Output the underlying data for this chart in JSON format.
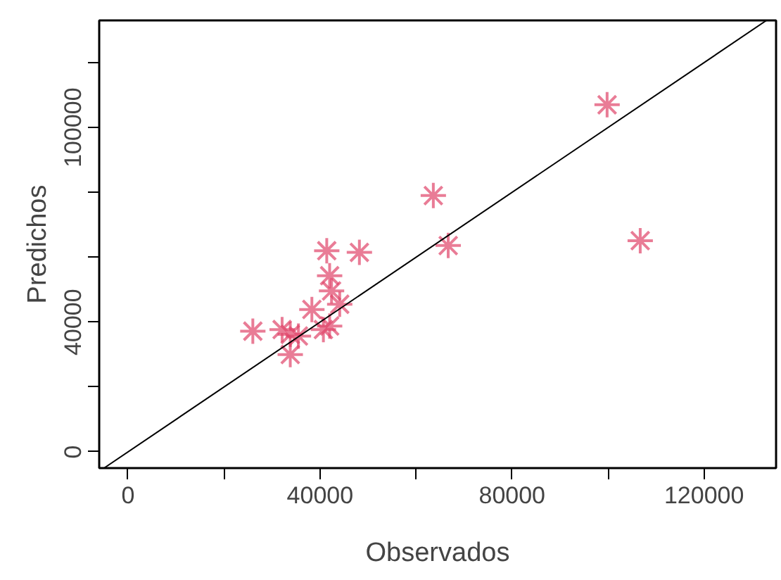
{
  "chart_data": {
    "type": "scatter",
    "xlabel": "Observados",
    "ylabel": "Predichos",
    "xlim": [
      -6000,
      135000
    ],
    "ylim": [
      -5000,
      133000
    ],
    "xticks": [
      0,
      {
        "value": 20000,
        "label": null
      },
      40000,
      {
        "value": 60000,
        "label": null
      },
      80000,
      {
        "value": 100000,
        "label": null
      },
      120000
    ],
    "yticks": [
      0,
      {
        "value": 20000,
        "label": null
      },
      40000,
      {
        "value": 60000,
        "label": null
      },
      {
        "value": 80000,
        "label": null
      },
      100000,
      {
        "value": 120000,
        "label": null
      }
    ],
    "grid": false,
    "series": [
      {
        "marker": "cross",
        "color": "#e0456a",
        "x": [
          99800,
          106700,
          63600,
          66700,
          48200,
          41400,
          42000,
          42400,
          44100,
          38300,
          42000,
          40700,
          26000,
          32100,
          33800,
          33800,
          35500
        ],
        "values": [
          107000,
          65100,
          79000,
          63600,
          61500,
          62000,
          54300,
          49600,
          45500,
          43900,
          38800,
          37700,
          37200,
          37700,
          36200,
          30000,
          35700
        ]
      },
      {
        "type": "line",
        "color": "#000000",
        "x": [
          -5000,
          133000
        ],
        "values": [
          -5000,
          133000
        ]
      }
    ]
  }
}
